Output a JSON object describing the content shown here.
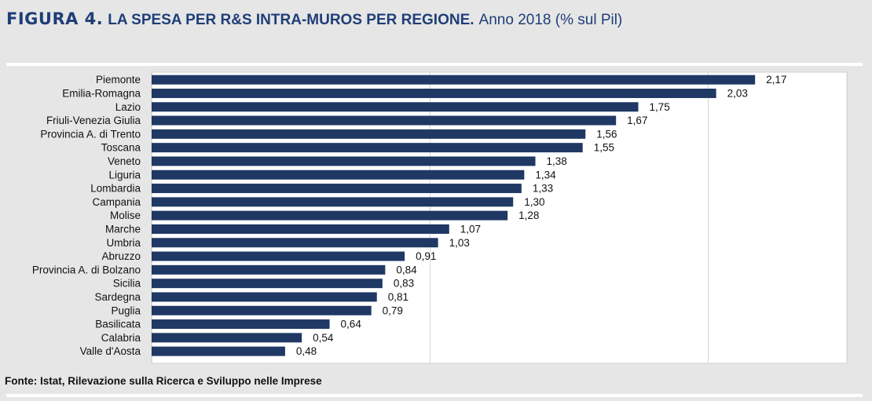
{
  "figure": {
    "label": "FIGURA 4.",
    "title": "LA SPESA PER R&S INTRA-MUROS PER REGIONE.",
    "subtitle": "Anno 2018 (% sul Pil)"
  },
  "source": "Fonte: Istat, Rilevazione sulla Ricerca e Sviluppo nelle Imprese",
  "colors": {
    "bar": "#1f3864",
    "background": "#e6e6e6",
    "plot_background": "#ffffff",
    "title": "#1f3e78"
  },
  "chart_data": {
    "type": "bar",
    "orientation": "horizontal",
    "title": "LA SPESA PER R&S INTRA-MUROS PER REGIONE.",
    "subtitle": "Anno 2018 (% sul Pil)",
    "categories": [
      "Piemonte",
      "Emilia-Romagna",
      "Lazio",
      "Friuli-Venezia Giulia",
      "Provincia A. di Trento",
      "Toscana",
      "Veneto",
      "Liguria",
      "Lombardia",
      "Campania",
      "Molise",
      "Marche",
      "Umbria",
      "Abruzzo",
      "Provincia A. di Bolzano",
      "Sicilia",
      "Sardegna",
      "Puglia",
      "Basilicata",
      "Calabria",
      "Valle d'Aosta"
    ],
    "values": [
      2.17,
      2.03,
      1.75,
      1.67,
      1.56,
      1.55,
      1.38,
      1.34,
      1.33,
      1.3,
      1.28,
      1.07,
      1.03,
      0.91,
      0.84,
      0.83,
      0.81,
      0.79,
      0.64,
      0.54,
      0.48
    ],
    "value_labels": [
      "2,17",
      "2,03",
      "1,75",
      "1,67",
      "1,56",
      "1,55",
      "1,38",
      "1,34",
      "1,33",
      "1,30",
      "1,28",
      "1,07",
      "1,03",
      "0,91",
      "0,84",
      "0,83",
      "0,81",
      "0,79",
      "0,64",
      "0,54",
      "0,48"
    ],
    "xlim": [
      0,
      2.5
    ],
    "x_gridlines": [
      0,
      1.0,
      2.0,
      2.5
    ],
    "grid": true,
    "legend": "none"
  }
}
